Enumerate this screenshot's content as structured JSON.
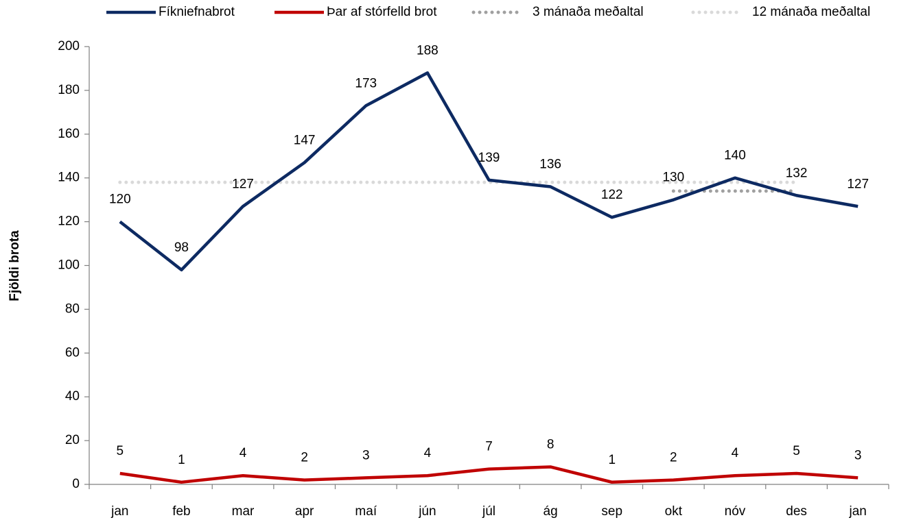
{
  "chart_data": {
    "type": "line",
    "y_label": "Fjöldi brota",
    "categories": [
      "jan",
      "feb",
      "mar",
      "apr",
      "maí",
      "jún",
      "júl",
      "ág",
      "sep",
      "okt",
      "nóv",
      "des",
      "jan"
    ],
    "series": [
      {
        "name": "Fíkniefnabrot",
        "color": "#0d2a62",
        "style": "solid",
        "labels": true,
        "values": [
          120,
          98,
          127,
          147,
          173,
          188,
          139,
          136,
          122,
          130,
          140,
          132,
          127
        ]
      },
      {
        "name": "Þar af stórfelld brot",
        "color": "#c00000",
        "style": "solid",
        "labels": true,
        "values": [
          5,
          1,
          4,
          2,
          3,
          4,
          7,
          8,
          1,
          2,
          4,
          5,
          3
        ]
      },
      {
        "name": "3 mánaða meðaltal",
        "color": "#a0a0a0",
        "style": "dotted",
        "labels": false,
        "values": [
          null,
          null,
          null,
          null,
          null,
          null,
          null,
          null,
          null,
          134,
          134,
          134,
          null
        ]
      },
      {
        "name": "12 mánaða meðaltal",
        "color": "#d9d9d9",
        "style": "dotted",
        "labels": false,
        "values": [
          138,
          138,
          138,
          138,
          138,
          138,
          138,
          138,
          138,
          138,
          138,
          138,
          null
        ]
      }
    ],
    "ylim": [
      0,
      200
    ],
    "yticks": [
      0,
      20,
      40,
      60,
      80,
      100,
      120,
      140,
      160,
      180,
      200
    ],
    "legend": "top"
  }
}
